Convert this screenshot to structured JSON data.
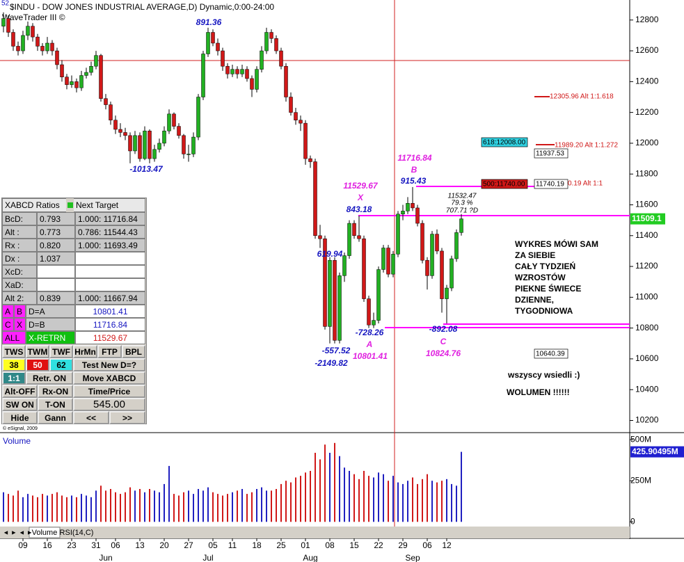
{
  "header": {
    "symbol": "$INDU - DOW JONES INDUSTRIAL AVERAGE,D) Dynamic,0:00-24:00",
    "study": "WaveTrader III ©",
    "corner": "52",
    "copyright": "© eSignal, 2009"
  },
  "chart_data": {
    "type": "candlestick",
    "categories": [
      null,
      null,
      null,
      null,
      "09",
      null,
      null,
      null,
      null,
      "16",
      null,
      null,
      null,
      null,
      "23",
      null,
      null,
      null,
      null,
      "31",
      null,
      null,
      null,
      "06",
      null,
      null,
      null,
      null,
      "13",
      null,
      null,
      null,
      null,
      "20",
      null,
      null,
      null,
      null,
      "27",
      null,
      null,
      null,
      null,
      "05",
      null,
      null,
      null,
      "11",
      null,
      null,
      null,
      null,
      "18",
      null,
      null,
      null,
      null,
      "25",
      null,
      null,
      null,
      null,
      "01",
      null,
      null,
      null,
      null,
      "08",
      null,
      null,
      null,
      null,
      "15",
      null,
      null,
      null,
      null,
      "22",
      null,
      null,
      null,
      null,
      "29",
      null,
      null,
      null,
      null,
      "06",
      null,
      null,
      null,
      "12",
      null,
      null,
      null
    ],
    "months": [
      null,
      null,
      null,
      null,
      null,
      null,
      null,
      null,
      null,
      null,
      null,
      null,
      null,
      null,
      null,
      null,
      null,
      null,
      null,
      null,
      null,
      "Jun",
      null,
      null,
      null,
      null,
      null,
      null,
      null,
      null,
      null,
      null,
      null,
      null,
      null,
      null,
      null,
      null,
      null,
      null,
      null,
      null,
      "Jul",
      null,
      null,
      null,
      null,
      null,
      null,
      null,
      null,
      null,
      null,
      null,
      null,
      null,
      null,
      null,
      null,
      null,
      null,
      null,
      null,
      "Aug",
      null,
      null,
      null,
      null,
      null,
      null,
      null,
      null,
      null,
      null,
      null,
      null,
      null,
      null,
      null,
      null,
      null,
      null,
      null,
      null,
      "Sep",
      null,
      null,
      null,
      null,
      null,
      null,
      null,
      null,
      null
    ],
    "candles": [
      [
        12760,
        12850,
        12720,
        12810
      ],
      [
        12810,
        12830,
        12690,
        12720
      ],
      [
        12720,
        12740,
        12600,
        12630
      ],
      [
        12630,
        12660,
        12570,
        12600
      ],
      [
        12600,
        12730,
        12580,
        12700
      ],
      [
        12700,
        12790,
        12670,
        12760
      ],
      [
        12760,
        12780,
        12660,
        12690
      ],
      [
        12690,
        12710,
        12600,
        12630
      ],
      [
        12630,
        12650,
        12570,
        12600
      ],
      [
        12600,
        12690,
        12580,
        12650
      ],
      [
        12650,
        12670,
        12570,
        12600
      ],
      [
        12600,
        12620,
        12480,
        12510
      ],
      [
        12510,
        12540,
        12400,
        12430
      ],
      [
        12430,
        12450,
        12350,
        12380
      ],
      [
        12380,
        12440,
        12360,
        12400
      ],
      [
        12400,
        12420,
        12330,
        12360
      ],
      [
        12360,
        12470,
        12340,
        12440
      ],
      [
        12440,
        12490,
        12420,
        12460
      ],
      [
        12460,
        12530,
        12440,
        12500
      ],
      [
        12500,
        12600,
        12480,
        12570
      ],
      [
        12570,
        12580,
        12270,
        12290
      ],
      [
        12290,
        12320,
        12220,
        12250
      ],
      [
        12250,
        12270,
        12120,
        12150
      ],
      [
        12150,
        12180,
        12060,
        12090
      ],
      [
        12090,
        12130,
        12040,
        12070
      ],
      [
        12070,
        12100,
        12020,
        12050
      ],
      [
        12050,
        12070,
        11870,
        11950
      ],
      [
        11950,
        12080,
        11930,
        12050
      ],
      [
        12050,
        12070,
        11880,
        11900
      ],
      [
        11900,
        12110,
        11890,
        12080
      ],
      [
        12080,
        12090,
        11870,
        11900
      ],
      [
        11900,
        11990,
        11880,
        11960
      ],
      [
        11960,
        12030,
        11940,
        12000
      ],
      [
        12000,
        12110,
        11980,
        12080
      ],
      [
        12080,
        12220,
        12060,
        12190
      ],
      [
        12190,
        12200,
        12090,
        12110
      ],
      [
        12110,
        12130,
        12030,
        12050
      ],
      [
        12050,
        12060,
        11900,
        11930
      ],
      [
        11930,
        11990,
        11880,
        11930
      ],
      [
        11930,
        12070,
        11910,
        12040
      ],
      [
        12040,
        12320,
        12020,
        12300
      ],
      [
        12300,
        12600,
        12280,
        12580
      ],
      [
        12580,
        12750,
        12560,
        12720
      ],
      [
        12720,
        12740,
        12630,
        12650
      ],
      [
        12650,
        12680,
        12570,
        12600
      ],
      [
        12600,
        12620,
        12470,
        12500
      ],
      [
        12500,
        12520,
        12420,
        12450
      ],
      [
        12450,
        12510,
        12430,
        12480
      ],
      [
        12480,
        12500,
        12420,
        12450
      ],
      [
        12450,
        12510,
        12430,
        12480
      ],
      [
        12480,
        12500,
        12400,
        12420
      ],
      [
        12420,
        12440,
        12300,
        12350
      ],
      [
        12350,
        12500,
        12330,
        12480
      ],
      [
        12480,
        12630,
        12460,
        12600
      ],
      [
        12600,
        12750,
        12580,
        12720
      ],
      [
        12720,
        12740,
        12650,
        12680
      ],
      [
        12680,
        12700,
        12580,
        12600
      ],
      [
        12600,
        12620,
        12480,
        12500
      ],
      [
        12500,
        12520,
        12270,
        12300
      ],
      [
        12300,
        12330,
        12180,
        12200
      ],
      [
        12200,
        12230,
        12120,
        12150
      ],
      [
        12150,
        12180,
        12080,
        12130
      ],
      [
        12130,
        12150,
        11860,
        11900
      ],
      [
        11900,
        11920,
        11840,
        11880
      ],
      [
        11880,
        11900,
        11380,
        11400
      ],
      [
        11400,
        11470,
        11320,
        11380
      ],
      [
        11380,
        11400,
        10790,
        10810
      ],
      [
        10810,
        11260,
        10700,
        11240
      ],
      [
        11240,
        11260,
        10700,
        10720
      ],
      [
        10720,
        11160,
        10700,
        11140
      ],
      [
        11140,
        11290,
        11100,
        11270
      ],
      [
        11270,
        11500,
        11250,
        11480
      ],
      [
        11480,
        11500,
        11380,
        11400
      ],
      [
        11400,
        11530,
        11360,
        11380
      ],
      [
        11380,
        11400,
        10970,
        10990
      ],
      [
        10990,
        11010,
        10800,
        10820
      ],
      [
        10820,
        10900,
        10800,
        10850
      ],
      [
        10850,
        11200,
        10830,
        11180
      ],
      [
        11180,
        11340,
        11160,
        11320
      ],
      [
        11320,
        11340,
        11130,
        11150
      ],
      [
        11150,
        11300,
        11130,
        11280
      ],
      [
        11280,
        11560,
        11260,
        11540
      ],
      [
        11540,
        11600,
        11500,
        11560
      ],
      [
        11560,
        11650,
        11540,
        11610
      ],
      [
        11610,
        11716,
        11560,
        11580
      ],
      [
        11580,
        11600,
        11460,
        11480
      ],
      [
        11480,
        11500,
        11220,
        11240
      ],
      [
        11240,
        11260,
        11050,
        11140
      ],
      [
        11140,
        11430,
        11120,
        11410
      ],
      [
        11410,
        11440,
        11280,
        11300
      ],
      [
        11300,
        11320,
        10900,
        10990
      ],
      [
        10990,
        11080,
        10830,
        11060
      ],
      [
        11060,
        11270,
        11040,
        11250
      ],
      [
        11250,
        11440,
        11230,
        11420
      ],
      [
        11420,
        11540,
        11400,
        11509
      ]
    ],
    "up_color": "#22b022",
    "down_color": "#d01818",
    "ylim": [
      10130,
      12930
    ],
    "yticks": [
      10200,
      10400,
      10600,
      10800,
      11000,
      11200,
      11400,
      11600,
      11800,
      12000,
      12200,
      12400,
      12600,
      12800
    ],
    "last_label": "11509.1",
    "last_color": "#22cc22",
    "volume": {
      "title": "Volume",
      "values": [
        180,
        170,
        160,
        190,
        150,
        170,
        160,
        150,
        170,
        160,
        170,
        180,
        160,
        150,
        160,
        150,
        170,
        160,
        150,
        190,
        220,
        190,
        200,
        180,
        170,
        180,
        210,
        190,
        200,
        180,
        200,
        190,
        180,
        230,
        340,
        170,
        160,
        180,
        190,
        170,
        200,
        190,
        210,
        180,
        170,
        160,
        170,
        180,
        190,
        200,
        170,
        180,
        200,
        210,
        190,
        190,
        200,
        230,
        250,
        240,
        270,
        280,
        300,
        310,
        420,
        380,
        470,
        420,
        480,
        400,
        330,
        310,
        290,
        260,
        310,
        280,
        270,
        300,
        290,
        250,
        280,
        240,
        230,
        250,
        270,
        230,
        260,
        290,
        250,
        240,
        250,
        260,
        230,
        220,
        425.90495
      ],
      "last_label": "425.90495M",
      "last_color": "#2020d0",
      "up_color": "#2020c0",
      "down_color": "#d01818",
      "ylim": [
        -20,
        530
      ],
      "yticks": [
        0,
        {
          "value": 250,
          "label": "250M"
        },
        {
          "value": 500,
          "label": "500M"
        }
      ]
    }
  },
  "annotations": [
    {
      "text": "891.36",
      "color": "#1515c0"
    },
    {
      "text": "-1013.47",
      "color": "#1515c0"
    },
    {
      "text": "11716.84",
      "color": "#e020e0"
    },
    {
      "text": "B",
      "color": "#e020e0"
    },
    {
      "text": "915.43",
      "color": "#1515c0"
    },
    {
      "text": "11529.67",
      "color": "#e020e0"
    },
    {
      "text": "X",
      "color": "#e020e0"
    },
    {
      "text": "843.18",
      "color": "#1515c0"
    },
    {
      "text": "11532.47",
      "color": "#000000"
    },
    {
      "text": "79.3 %",
      "color": "#000000"
    },
    {
      "text": "707.71 ?D",
      "color": "#000000"
    },
    {
      "text": "619.94",
      "color": "#1515c0"
    },
    {
      "text": "-728.26",
      "color": "#1515c0"
    },
    {
      "text": "A",
      "color": "#e020e0"
    },
    {
      "text": "10801.41",
      "color": "#e020e0"
    },
    {
      "text": "-557.52",
      "color": "#1515c0"
    },
    {
      "text": "-2149.82",
      "color": "#1515c0"
    },
    {
      "text": "-892.08",
      "color": "#1515c0"
    },
    {
      "text": "C",
      "color": "#e020e0"
    },
    {
      "text": "10824.76",
      "color": "#e020e0"
    }
  ],
  "levels": [
    "12305.96 Alt 1:1.618",
    "11989.20 Alt 1:1.272",
    "618:12008.00",
    "11937.53",
    "500:11740.00",
    "11740.19",
    "0.19 Alt 1:1",
    "10640.39"
  ],
  "notes": [
    "WYKRES MÓWI SAM",
    "ZA SIEBIE",
    "CAŁY TYDZIEŃ",
    "WZROSTÓW",
    "PIEKNE ŚWIECE",
    "DZIENNE,",
    "TYGODNIOWA",
    "wszyscy wsiedli :)",
    "WOLUMEN !!!!!!"
  ],
  "tabs": [
    "Volume",
    "RSI(14,C)"
  ],
  "panel": {
    "title": "XABCD Ratios",
    "title2": "Next Target",
    "ratios": [
      [
        "BcD:",
        "0.793",
        "1.000: 11716.84"
      ],
      [
        "Alt  :",
        "0.773",
        "0.786: 11544.43"
      ],
      [
        "Rx   :",
        "0.820",
        "1.000: 11693.49"
      ],
      [
        "Dx   :",
        "1.037"
      ],
      [
        "XcD:"
      ],
      [
        "XaD:"
      ],
      [
        "Alt 2:",
        "0.839",
        "1.000: 11667.94"
      ]
    ],
    "targets": [
      [
        "A",
        "B",
        "D=A",
        "10801.41"
      ],
      [
        "C",
        "X",
        "D=B",
        "11716.84"
      ],
      [
        "ALL",
        "X-RETRN",
        "11529.67"
      ]
    ],
    "buttons": [
      [
        "TWS",
        "TWM",
        "TWF",
        "HrMn",
        "FTP",
        "BPL"
      ],
      [
        "38",
        "50",
        "62",
        "Test New D=?"
      ],
      [
        "1:1",
        "Retr. ON",
        "Move XABCD"
      ],
      [
        "Alt-OFF",
        "Rx-ON",
        "Time/Price"
      ],
      [
        "SW ON",
        "T-ON",
        "545.00"
      ],
      [
        "Hide",
        "Gann",
        "<<",
        ">>"
      ]
    ]
  }
}
